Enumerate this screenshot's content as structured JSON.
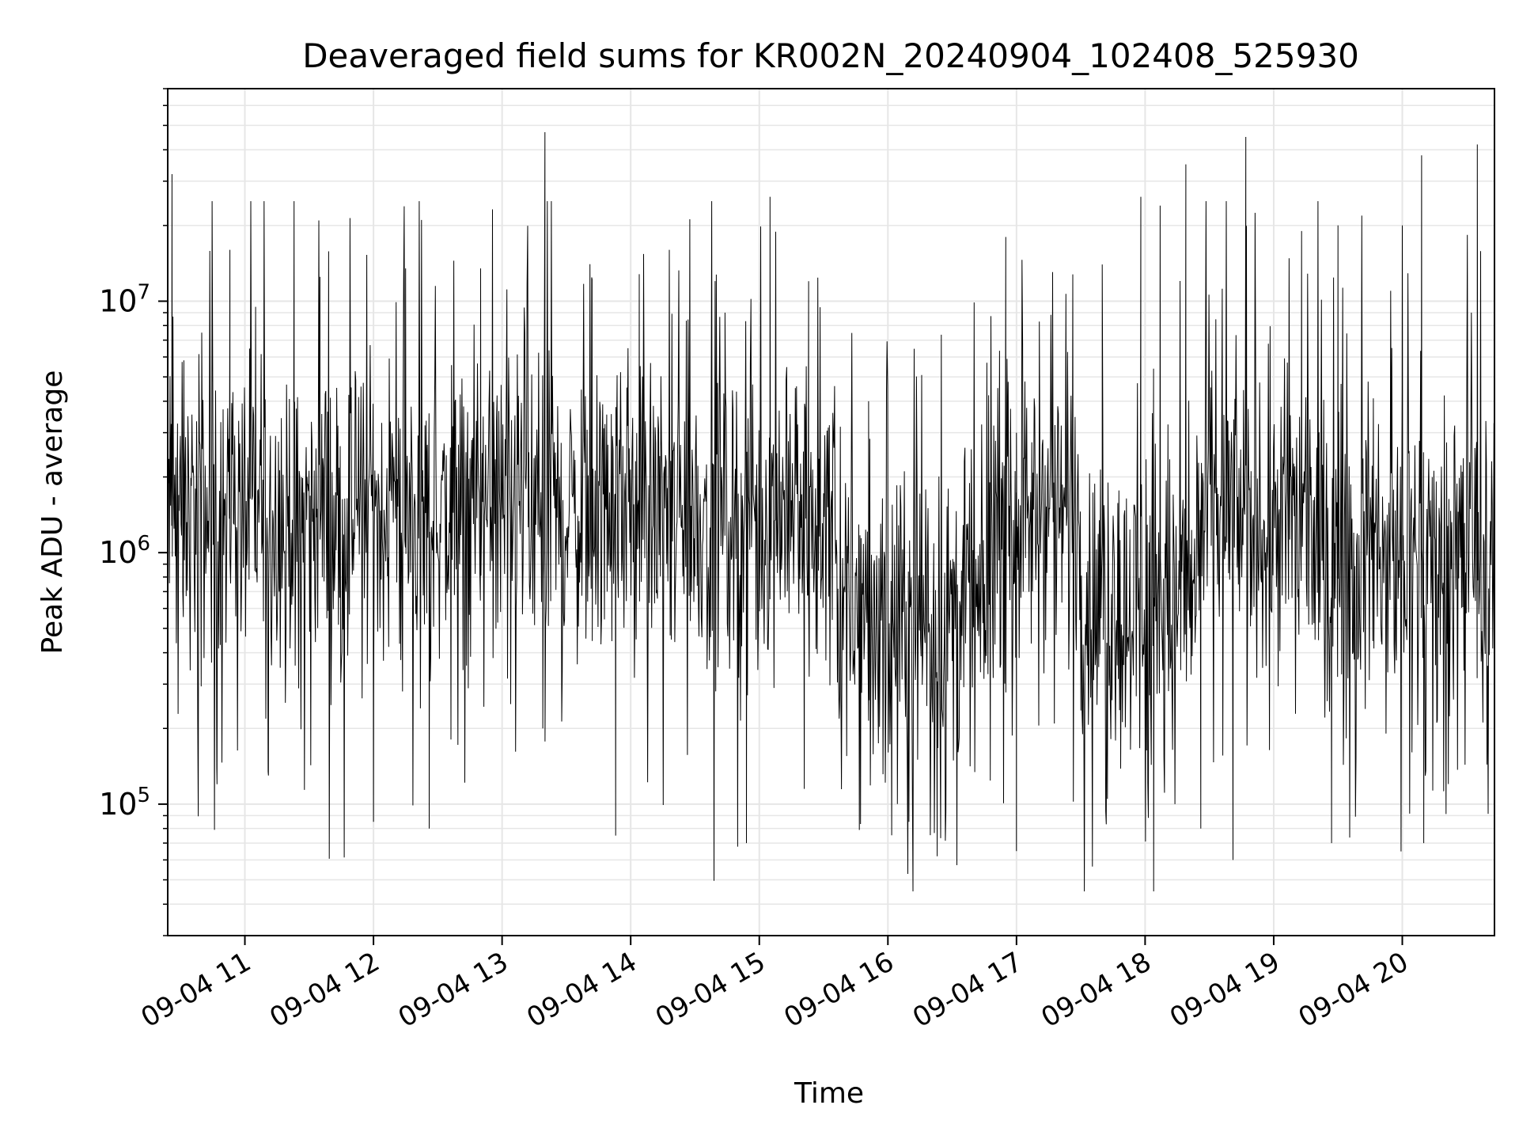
{
  "chart_data": {
    "type": "line",
    "title": "Deaveraged field sums for KR002N_20240904_102408_525930",
    "xlabel": "Time",
    "ylabel": "Peak ADU - average",
    "yscale": "log",
    "ylim": [
      30000,
      70000000
    ],
    "xlim": [
      "2024-09-04 10:24",
      "2024-09-04 20:43"
    ],
    "x_ticks": [
      {
        "label": "09-04 11",
        "time": "2024-09-04 11:00"
      },
      {
        "label": "09-04 12",
        "time": "2024-09-04 12:00"
      },
      {
        "label": "09-04 13",
        "time": "2024-09-04 13:00"
      },
      {
        "label": "09-04 14",
        "time": "2024-09-04 14:00"
      },
      {
        "label": "09-04 15",
        "time": "2024-09-04 15:00"
      },
      {
        "label": "09-04 16",
        "time": "2024-09-04 16:00"
      },
      {
        "label": "09-04 17",
        "time": "2024-09-04 17:00"
      },
      {
        "label": "09-04 18",
        "time": "2024-09-04 18:00"
      },
      {
        "label": "09-04 19",
        "time": "2024-09-04 19:00"
      },
      {
        "label": "09-04 20",
        "time": "2024-09-04 20:00"
      }
    ],
    "y_ticks": [
      {
        "base": "10",
        "exp": "5",
        "value": 100000
      },
      {
        "base": "10",
        "exp": "6",
        "value": 1000000
      },
      {
        "base": "10",
        "exp": "7",
        "value": 10000000
      }
    ],
    "grid": true,
    "line_color": "#000000",
    "series": [
      {
        "x": [
          "2024-09-04 10:24",
          "2024-09-04 10:26",
          "2024-09-04 10:31",
          "2024-09-04 10:45",
          "2024-09-04 10:47",
          "2024-09-04 10:53",
          "2024-09-04 11:05",
          "2024-09-04 11:11",
          "2024-09-04 11:16",
          "2024-09-04 11:23",
          "2024-09-04 11:29",
          "2024-09-04 11:35",
          "2024-09-04 12:00",
          "2024-09-04 12:15",
          "2024-09-04 12:25",
          "2024-09-04 12:26",
          "2024-09-04 12:50",
          "2024-09-04 12:56",
          "2024-09-04 13:04",
          "2024-09-04 13:19",
          "2024-09-04 13:20",
          "2024-09-04 13:42",
          "2024-09-04 13:49",
          "2024-09-04 13:53",
          "2024-09-04 14:04",
          "2024-09-04 14:18",
          "2024-09-04 14:30",
          "2024-09-04 14:44",
          "2024-09-04 14:54",
          "2024-09-04 15:05",
          "2024-09-04 15:13",
          "2024-09-04 15:21",
          "2024-09-04 15:23",
          "2024-09-04 15:51",
          "2024-09-04 16:23",
          "2024-09-04 16:36",
          "2024-09-04 16:55",
          "2024-09-04 17:00",
          "2024-09-04 17:00",
          "2024-09-04 17:40",
          "2024-09-04 17:58",
          "2024-09-04 18:04",
          "2024-09-04 18:07",
          "2024-09-04 18:19",
          "2024-09-04 18:26",
          "2024-09-04 18:41",
          "2024-09-04 18:47",
          "2024-09-04 19:13",
          "2024-09-04 19:27",
          "2024-09-04 19:30",
          "2024-09-04 20:00",
          "2024-09-04 20:09",
          "2024-09-04 20:10",
          "2024-09-04 20:35",
          "2024-09-04 20:43"
        ],
        "y": [
          2000000,
          32000000,
          700000,
          5000000,
          120000,
          16000000,
          9500000,
          130000,
          700000,
          4000000,
          2000000,
          12500000,
          85000,
          13500000,
          2500000,
          80000,
          13500000,
          1000000,
          250000,
          200000,
          47000000,
          12200000,
          700000,
          75000,
          12800000,
          16000000,
          1500000,
          9000000,
          70000,
          26000000,
          1000000,
          115000,
          12000000,
          4000000,
          62000,
          1000000,
          18000000,
          65000,
          3000000,
          14000000,
          26000000,
          45000,
          24000000,
          35000000,
          80000,
          60000,
          45000000,
          19000000,
          70000,
          20000000,
          20000000,
          38000000,
          70000,
          42000000,
          1200000
        ]
      }
    ]
  }
}
